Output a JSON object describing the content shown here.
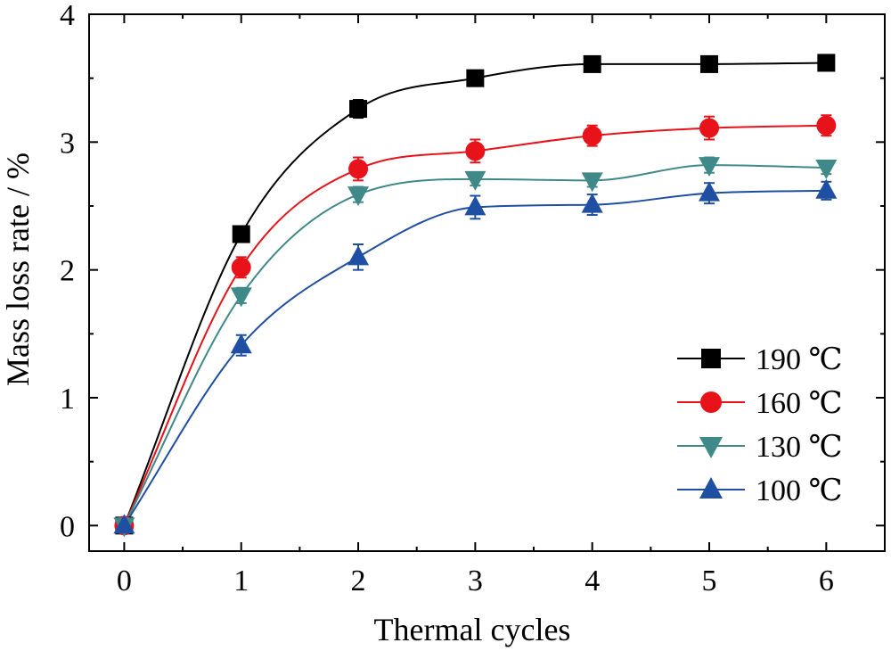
{
  "chart_data": {
    "type": "line",
    "title": "",
    "xlabel": "Thermal cycles",
    "ylabel": "Mass loss rate / %",
    "x": [
      0,
      1,
      2,
      3,
      4,
      5,
      6
    ],
    "xlim": [
      -0.3,
      6.5
    ],
    "ylim": [
      -0.2,
      4
    ],
    "xticks": [
      "0",
      "1",
      "2",
      "3",
      "4",
      "5",
      "6"
    ],
    "yticks": [
      "0",
      "1",
      "2",
      "3",
      "4"
    ],
    "grid": false,
    "legend_position": "bottom-right",
    "series": [
      {
        "name": "190 ℃",
        "marker": "square",
        "color": "#000000",
        "values": [
          0,
          2.28,
          3.26,
          3.5,
          3.61,
          3.61,
          3.62
        ],
        "errors": [
          0.04,
          0.06,
          0.07,
          0.06,
          0.05,
          0.06,
          0.05
        ]
      },
      {
        "name": "160 ℃",
        "marker": "circle",
        "color": "#e8121a",
        "values": [
          0,
          2.02,
          2.79,
          2.93,
          3.05,
          3.11,
          3.13
        ],
        "errors": [
          0.04,
          0.08,
          0.09,
          0.09,
          0.08,
          0.09,
          0.08
        ]
      },
      {
        "name": "130 ℃",
        "marker": "triangle-down",
        "color": "#3f8a88",
        "values": [
          0,
          1.8,
          2.59,
          2.71,
          2.7,
          2.82,
          2.8
        ],
        "errors": [
          0.04,
          0.06,
          0.06,
          0.05,
          0.05,
          0.06,
          0.05
        ]
      },
      {
        "name": "100 ℃",
        "marker": "triangle-up",
        "color": "#1e4fa3",
        "values": [
          0,
          1.41,
          2.1,
          2.49,
          2.51,
          2.6,
          2.62
        ],
        "errors": [
          0.04,
          0.08,
          0.1,
          0.09,
          0.08,
          0.08,
          0.07
        ]
      }
    ]
  }
}
